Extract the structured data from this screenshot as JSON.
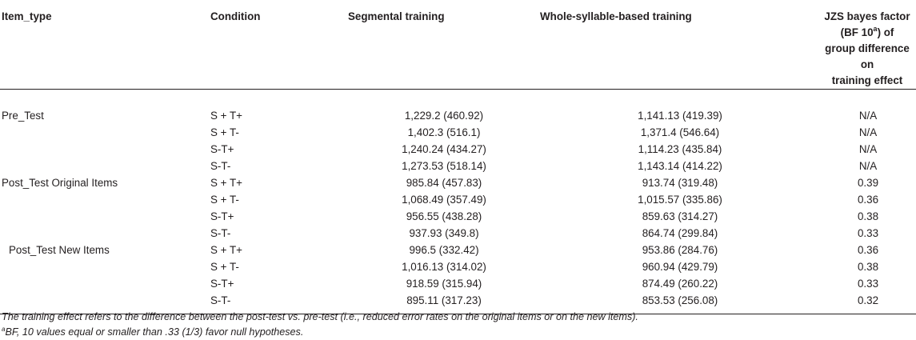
{
  "headers": {
    "item_type": "Item_type",
    "condition": "Condition",
    "segmental": "Segmental training",
    "whole": "Whole-syllable-based training",
    "bf_line1": "JZS bayes factor",
    "bf_line2_pre": "(BF 10",
    "bf_line2_sup": "a",
    "bf_line2_post": ") of",
    "bf_line3": "group difference on",
    "bf_line4": "training effect"
  },
  "rows": [
    {
      "item_type": "Pre_Test",
      "condition": "S + T+",
      "segmental": "1,229.2 (460.92)",
      "whole": "1,141.13 (419.39)",
      "bf": "N/A"
    },
    {
      "item_type": "",
      "condition": "S + T-",
      "segmental": "1,402.3 (516.1)",
      "whole": "1,371.4 (546.64)",
      "bf": "N/A"
    },
    {
      "item_type": "",
      "condition": "S-T+",
      "segmental": "1,240.24 (434.27)",
      "whole": "1,114.23 (435.84)",
      "bf": "N/A"
    },
    {
      "item_type": "",
      "condition": "S-T-",
      "segmental": "1,273.53 (518.14)",
      "whole": "1,143.14 (414.22)",
      "bf": "N/A"
    },
    {
      "item_type": "Post_Test Original Items",
      "condition": "S + T+",
      "segmental": "985.84 (457.83)",
      "whole": "913.74 (319.48)",
      "bf": "0.39"
    },
    {
      "item_type": "",
      "condition": "S + T-",
      "segmental": "1,068.49 (357.49)",
      "whole": "1,015.57 (335.86)",
      "bf": "0.36"
    },
    {
      "item_type": "",
      "condition": "S-T+",
      "segmental": "956.55 (438.28)",
      "whole": "859.63 (314.27)",
      "bf": "0.38"
    },
    {
      "item_type": "",
      "condition": "S-T-",
      "segmental": "937.93 (349.8)",
      "whole": "864.74 (299.84)",
      "bf": "0.33"
    },
    {
      "item_type": "Post_Test New Items",
      "condition": "S + T+",
      "segmental": "996.5 (332.42)",
      "whole": "953.86 (284.76)",
      "bf": "0.36"
    },
    {
      "item_type": "",
      "condition": "S + T-",
      "segmental": "1,016.13 (314.02)",
      "whole": "960.94 (429.79)",
      "bf": "0.38"
    },
    {
      "item_type": "",
      "condition": "S-T+",
      "segmental": "918.59 (315.94)",
      "whole": "874.49 (260.22)",
      "bf": "0.33"
    },
    {
      "item_type": "",
      "condition": "S-T-",
      "segmental": "895.11 (317.23)",
      "whole": "853.53 (256.08)",
      "bf": "0.32"
    }
  ],
  "notes": {
    "note1": "The training effect refers to the difference between the post-test vs. pre-test (i.e., reduced error rates on the original items or on the new items).",
    "note2_sup": "a",
    "note2": "BF, 10 values equal or smaller than .33 (1/3) favor null hypotheses."
  }
}
